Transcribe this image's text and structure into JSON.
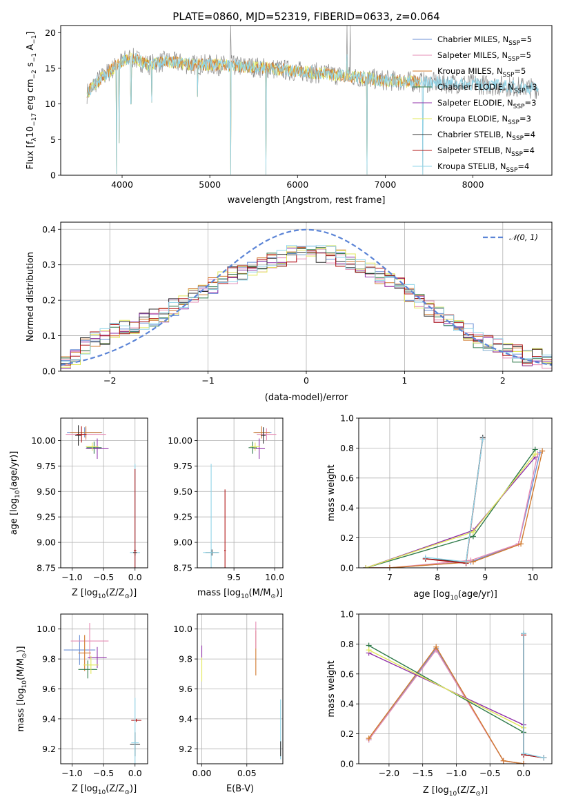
{
  "title": "PLATE=0860, MJD=52319, FIBERID=0633, z=0.064",
  "colors": {
    "chabrier_miles": "#6b8fd6",
    "salpeter_miles": "#e68cb5",
    "kroupa_miles": "#d17a2e",
    "chabrier_elodie": "#2f7a4a",
    "salpeter_elodie": "#8f2fa8",
    "kroupa_elodie": "#e2e85a",
    "chabrier_stelib": "#333333",
    "salpeter_stelib": "#b01515",
    "kroupa_stelib": "#8fd4e8",
    "gaussian": "#5b84d6",
    "grid": "#b0b0b0"
  },
  "chart_data": [
    {
      "type": "line",
      "id": "spectrum",
      "title": "PLATE=0860, MJD=52319, FIBERID=0633, z=0.064",
      "xlabel": "wavelength [Angstrom, rest frame]",
      "ylabel_parts": [
        "Flux [f",
        "λ",
        "10",
        "−17",
        " erg cm",
        "−2",
        " s",
        "−1",
        " A",
        "−1",
        "]"
      ],
      "xlim": [
        3300,
        8900
      ],
      "ylim": [
        0,
        21
      ],
      "xticks": [
        4000,
        5000,
        6000,
        7000,
        8000
      ],
      "yticks": [
        0,
        5,
        10,
        15,
        20
      ],
      "legend_position": "top-right",
      "legend": [
        {
          "name": "Chabrier MILES, N",
          "sub": "SSP",
          "suffix": "=5",
          "color": "chabrier_miles"
        },
        {
          "name": "Salpeter MILES, N",
          "sub": "SSP",
          "suffix": "=5",
          "color": "salpeter_miles"
        },
        {
          "name": "Kroupa MILES, N",
          "sub": "SSP",
          "suffix": "=5",
          "color": "kroupa_miles"
        },
        {
          "name": "Chabrier ELODIE, N",
          "sub": "SSP",
          "suffix": "=3",
          "color": "chabrier_elodie"
        },
        {
          "name": "Salpeter ELODIE, N",
          "sub": "SSP",
          "suffix": "=3",
          "color": "salpeter_elodie"
        },
        {
          "name": "Kroupa ELODIE, N",
          "sub": "SSP",
          "suffix": "=3",
          "color": "kroupa_elodie"
        },
        {
          "name": "Chabrier STELIB, N",
          "sub": "SSP",
          "suffix": "=4",
          "color": "chabrier_stelib"
        },
        {
          "name": "Salpeter STELIB, N",
          "sub": "SSP",
          "suffix": "=4",
          "color": "salpeter_stelib"
        },
        {
          "name": "Kroupa STELIB, N",
          "sub": "SSP",
          "suffix": "=4",
          "color": "kroupa_stelib"
        }
      ],
      "continuum": [
        [
          3600,
          11.5
        ],
        [
          3700,
          13
        ],
        [
          3800,
          14
        ],
        [
          3900,
          15
        ],
        [
          4000,
          16
        ],
        [
          4100,
          16.5
        ],
        [
          4300,
          15.5
        ],
        [
          4500,
          16
        ],
        [
          4800,
          15.5
        ],
        [
          5000,
          15.5
        ],
        [
          5500,
          15.2
        ],
        [
          6000,
          14.6
        ],
        [
          6500,
          14
        ],
        [
          7000,
          13.3
        ],
        [
          7500,
          13
        ],
        [
          8000,
          12.8
        ],
        [
          8500,
          12.4
        ],
        [
          8700,
          12.2
        ]
      ],
      "data_x_range": [
        3600,
        8750
      ],
      "model_x_range": [
        3600,
        7400
      ],
      "model_x_range_long": [
        3600,
        8750
      ],
      "dips": [
        [
          3934,
          0.2
        ],
        [
          3968,
          4.5
        ],
        [
          4101,
          10
        ],
        [
          4340,
          10.2
        ],
        [
          4861,
          11
        ],
        [
          5236,
          0.1
        ],
        [
          5640,
          0.1
        ],
        [
          6563,
          17
        ],
        [
          6790,
          0.1
        ],
        [
          7430,
          0.1
        ]
      ],
      "spikes": [
        [
          5236,
          21
        ],
        [
          6563,
          21
        ],
        [
          6600,
          21
        ]
      ]
    },
    {
      "type": "line",
      "id": "residuals",
      "xlabel": "(data-model)/error",
      "ylabel": "Normed distribution",
      "xlim": [
        -2.5,
        2.5
      ],
      "ylim": [
        0,
        0.42
      ],
      "xticks": [
        -2,
        -1,
        0,
        1,
        2
      ],
      "yticks": [
        0.0,
        0.1,
        0.2,
        0.3,
        0.4
      ],
      "xtick_labels": [
        "−2",
        "−1",
        "0",
        "1",
        "2"
      ],
      "ytick_labels": [
        "0.0",
        "0.1",
        "0.2",
        "0.3",
        "0.4"
      ],
      "legend_position": "top-right",
      "legend": [
        {
          "name": "𝒩(0, 1)",
          "color": "gaussian"
        }
      ],
      "bins": 50,
      "hist_base": [
        0.02,
        0.04,
        0.07,
        0.09,
        0.1,
        0.12,
        0.12,
        0.13,
        0.14,
        0.15,
        0.16,
        0.18,
        0.19,
        0.21,
        0.23,
        0.24,
        0.26,
        0.27,
        0.28,
        0.29,
        0.3,
        0.31,
        0.32,
        0.33,
        0.33,
        0.34,
        0.33,
        0.33,
        0.32,
        0.31,
        0.3,
        0.29,
        0.27,
        0.26,
        0.24,
        0.22,
        0.2,
        0.18,
        0.16,
        0.14,
        0.12,
        0.11,
        0.09,
        0.08,
        0.07,
        0.06,
        0.05,
        0.04,
        0.04,
        0.03
      ],
      "series_order": [
        "chabrier_miles",
        "salpeter_miles",
        "kroupa_miles",
        "chabrier_elodie",
        "salpeter_elodie",
        "kroupa_elodie",
        "chabrier_stelib",
        "salpeter_stelib",
        "kroupa_stelib"
      ]
    },
    {
      "type": "scatter",
      "id": "z_vs_age",
      "xlabel_parts": [
        "Z [log",
        "10",
        "(Z/Z",
        "⊙",
        ")]"
      ],
      "ylabel_parts": [
        "age  [log",
        "10",
        "(age/yr)]"
      ],
      "xlim": [
        -1.18,
        0.2
      ],
      "ylim": [
        8.75,
        10.22
      ],
      "xticks": [
        -1.0,
        -0.5,
        0.0
      ],
      "yticks": [
        8.75,
        9.0,
        9.25,
        9.5,
        9.75,
        10.0
      ],
      "xtick_labels": [
        "−1.0",
        "−0.5",
        "0.0"
      ],
      "ytick_labels": [
        "8.75",
        "9.00",
        "9.25",
        "9.50",
        "9.75",
        "10.00"
      ],
      "points": [
        {
          "s": "chabrier_miles",
          "x": -0.8,
          "y": 10.08,
          "ex": 0.28,
          "ey": 0.05
        },
        {
          "s": "salpeter_miles",
          "x": -0.78,
          "y": 10.06,
          "ex": 0.32,
          "ey": 0.06
        },
        {
          "s": "kroupa_miles",
          "x": -0.78,
          "y": 10.08,
          "ex": 0.25,
          "ey": 0.06
        },
        {
          "s": "chabrier_elodie",
          "x": -0.65,
          "y": 9.93,
          "ex": 0.12,
          "ey": 0.06
        },
        {
          "s": "salpeter_elodie",
          "x": -0.6,
          "y": 9.92,
          "ex": 0.18,
          "ey": 0.1
        },
        {
          "s": "kroupa_elodie",
          "x": -0.68,
          "y": 9.94,
          "ex": 0.1,
          "ey": 0.04
        },
        {
          "s": "chabrier_stelib",
          "x": -0.9,
          "y": 10.05,
          "ex": 0.05,
          "ey": 0.1
        },
        {
          "s": "salpeter_stelib",
          "x": -0.85,
          "y": 10.06,
          "ex": 0.08,
          "ey": 0.08
        },
        {
          "s": "kroupa_stelib",
          "x": 0.0,
          "y": 8.9,
          "ex": 0.08,
          "ey": 0.87
        },
        {
          "s": "chabrier_stelib",
          "x": 0.0,
          "y": 8.9,
          "ex": 0.03,
          "ey": 0.03
        },
        {
          "s": "salpeter_stelib",
          "x": 0.0,
          "y": 8.92,
          "ex": 0.02,
          "ey": 0.8
        }
      ]
    },
    {
      "type": "scatter",
      "id": "mass_vs_age",
      "xlabel_parts": [
        "mass [log",
        "10",
        "(M/M",
        "⊙",
        ")]"
      ],
      "xlim": [
        9.05,
        10.1
      ],
      "ylim": [
        8.75,
        10.22
      ],
      "xticks": [
        9.5,
        10.0
      ],
      "yticks": [
        8.75,
        9.0,
        9.25,
        9.5,
        9.75,
        10.0
      ],
      "xtick_labels": [
        "9.5",
        "10.0"
      ],
      "ytick_labels": [
        "8.75",
        "9.00",
        "9.25",
        "9.50",
        "9.75",
        "10.00"
      ],
      "points": [
        {
          "s": "chabrier_miles",
          "x": 9.86,
          "y": 10.08,
          "ex": 0.1,
          "ey": 0.05
        },
        {
          "s": "salpeter_miles",
          "x": 9.9,
          "y": 10.06,
          "ex": 0.12,
          "ey": 0.06
        },
        {
          "s": "kroupa_miles",
          "x": 9.84,
          "y": 10.08,
          "ex": 0.1,
          "ey": 0.06
        },
        {
          "s": "chabrier_elodie",
          "x": 9.73,
          "y": 9.93,
          "ex": 0.05,
          "ey": 0.06
        },
        {
          "s": "salpeter_elodie",
          "x": 9.81,
          "y": 9.92,
          "ex": 0.07,
          "ey": 0.1
        },
        {
          "s": "kroupa_elodie",
          "x": 9.76,
          "y": 9.94,
          "ex": 0.06,
          "ey": 0.04
        },
        {
          "s": "chabrier_stelib",
          "x": 9.23,
          "y": 8.9,
          "ex": 0.08,
          "ey": 0.03
        },
        {
          "s": "salpeter_stelib",
          "x": 9.39,
          "y": 8.92,
          "ex": 0.01,
          "ey": 0.6
        },
        {
          "s": "kroupa_stelib",
          "x": 9.22,
          "y": 8.9,
          "ex": 0.1,
          "ey": 0.87
        },
        {
          "s": "chabrier_stelib",
          "x": 9.86,
          "y": 10.05,
          "ex": 0.03,
          "ey": 0.08
        }
      ]
    },
    {
      "type": "line",
      "id": "age_vs_weight",
      "xlabel_parts": [
        "age  [log",
        "10",
        "(age/yr)]"
      ],
      "ylabel": "mass weight",
      "xlim": [
        6.35,
        10.4
      ],
      "ylim": [
        0,
        1.0
      ],
      "xticks": [
        7,
        8,
        9,
        10
      ],
      "yticks": [
        0.0,
        0.2,
        0.4,
        0.6,
        0.8,
        1.0
      ],
      "xtick_labels": [
        "7",
        "8",
        "9",
        "10"
      ],
      "ytick_labels": [
        "0.0",
        "0.2",
        "0.4",
        "0.6",
        "0.8",
        "1.0"
      ],
      "series": [
        {
          "s": "chabrier_miles",
          "x": [
            6.5,
            7.0,
            8.7,
            9.7,
            10.15
          ],
          "y": [
            0.0,
            0.0,
            0.04,
            0.16,
            0.77
          ]
        },
        {
          "s": "salpeter_miles",
          "x": [
            6.5,
            7.0,
            8.7,
            9.7,
            10.1
          ],
          "y": [
            0.0,
            0.0,
            0.05,
            0.16,
            0.76
          ]
        },
        {
          "s": "kroupa_miles",
          "x": [
            6.5,
            7.0,
            8.75,
            9.75,
            10.2
          ],
          "y": [
            0.0,
            0.0,
            0.04,
            0.16,
            0.78
          ]
        },
        {
          "s": "chabrier_elodie",
          "x": [
            6.5,
            8.75,
            10.05
          ],
          "y": [
            0.0,
            0.21,
            0.79
          ]
        },
        {
          "s": "salpeter_elodie",
          "x": [
            6.5,
            8.75,
            10.05
          ],
          "y": [
            0.0,
            0.25,
            0.74
          ]
        },
        {
          "s": "kroupa_elodie",
          "x": [
            6.5,
            8.75,
            10.05
          ],
          "y": [
            0.0,
            0.24,
            0.76
          ]
        },
        {
          "s": "chabrier_stelib",
          "x": [
            7.75,
            8.6,
            8.95
          ],
          "y": [
            0.06,
            0.04,
            0.87
          ]
        },
        {
          "s": "salpeter_stelib",
          "x": [
            7.75,
            8.6,
            8.95
          ],
          "y": [
            0.06,
            0.03,
            0.86
          ]
        },
        {
          "s": "kroupa_stelib",
          "x": [
            7.75,
            8.6,
            8.95
          ],
          "y": [
            0.07,
            0.04,
            0.86
          ]
        }
      ]
    },
    {
      "type": "scatter",
      "id": "z_vs_mass",
      "xlabel_parts": [
        "Z [log",
        "10",
        "(Z/Z",
        "⊙",
        ")]"
      ],
      "ylabel_parts": [
        "mass [log",
        "10",
        "(M/M",
        "⊙",
        ")]"
      ],
      "xlim": [
        -1.18,
        0.2
      ],
      "ylim": [
        9.1,
        10.1
      ],
      "xticks": [
        -1.0,
        -0.5,
        0.0
      ],
      "yticks": [
        9.2,
        9.4,
        9.6,
        9.8,
        10.0
      ],
      "xtick_labels": [
        "−1.0",
        "−0.5",
        "0.0"
      ],
      "ytick_labels": [
        "9.2",
        "9.4",
        "9.6",
        "9.8",
        "10.0"
      ],
      "points": [
        {
          "s": "chabrier_miles",
          "x": -0.88,
          "y": 9.86,
          "ex": 0.25,
          "ey": 0.1
        },
        {
          "s": "salpeter_miles",
          "x": -0.72,
          "y": 9.92,
          "ex": 0.3,
          "ey": 0.12
        },
        {
          "s": "kroupa_miles",
          "x": -0.8,
          "y": 9.84,
          "ex": 0.1,
          "ey": 0.12
        },
        {
          "s": "chabrier_elodie",
          "x": -0.75,
          "y": 9.73,
          "ex": 0.15,
          "ey": 0.06
        },
        {
          "s": "salpeter_elodie",
          "x": -0.6,
          "y": 9.81,
          "ex": 0.15,
          "ey": 0.07
        },
        {
          "s": "kroupa_elodie",
          "x": -0.7,
          "y": 9.76,
          "ex": 0.12,
          "ey": 0.06
        },
        {
          "s": "chabrier_stelib",
          "x": 0.0,
          "y": 9.23,
          "ex": 0.08,
          "ey": 0.08
        },
        {
          "s": "salpeter_stelib",
          "x": 0.02,
          "y": 9.39,
          "ex": 0.08,
          "ey": 0.01
        },
        {
          "s": "kroupa_stelib",
          "x": 0.0,
          "y": 9.24,
          "ex": 0.06,
          "ey": 0.3
        }
      ]
    },
    {
      "type": "scatter",
      "id": "ebv_vs_mass",
      "xlabel": "E(B-V)",
      "xlim": [
        -0.005,
        0.09
      ],
      "ylim": [
        9.1,
        10.1
      ],
      "xticks": [
        0.0,
        0.05
      ],
      "yticks": [
        9.2,
        9.4,
        9.6,
        9.8,
        10.0
      ],
      "xtick_labels": [
        "0.00",
        "0.05"
      ],
      "ytick_labels": [
        "9.2",
        "9.4",
        "9.6",
        "9.8",
        "10.0"
      ],
      "points": [
        {
          "s": "kroupa_elodie",
          "x": 0.0,
          "y": 9.73,
          "ex": 0.0,
          "ey": 0.08
        },
        {
          "s": "salpeter_elodie",
          "x": 0.0,
          "y": 9.85,
          "ex": 0.0,
          "ey": 0.04
        },
        {
          "s": "kroupa_miles",
          "x": 0.06,
          "y": 9.84,
          "ex": 0.0,
          "ey": 0.15
        },
        {
          "s": "salpeter_miles",
          "x": 0.06,
          "y": 9.96,
          "ex": 0.0,
          "ey": 0.09
        },
        {
          "s": "kroupa_stelib",
          "x": 0.0875,
          "y": 9.33,
          "ex": 0.0,
          "ey": 0.2
        },
        {
          "s": "chabrier_stelib",
          "x": 0.0875,
          "y": 9.2,
          "ex": 0.0,
          "ey": 0.05
        }
      ]
    },
    {
      "type": "line",
      "id": "z_vs_weight",
      "xlabel_parts": [
        "Z [log",
        "10",
        "(Z/Z",
        "⊙",
        ")]"
      ],
      "ylabel": "mass weight",
      "xlim": [
        -2.45,
        0.42
      ],
      "ylim": [
        0,
        1.0
      ],
      "xticks": [
        -2.0,
        -1.5,
        -1.0,
        -0.5,
        0.0
      ],
      "yticks": [
        0.0,
        0.2,
        0.4,
        0.6,
        0.8,
        1.0
      ],
      "xtick_labels": [
        "−2.0",
        "−1.5",
        "−1.0",
        "−0.5",
        "0.0"
      ],
      "ytick_labels": [
        "0.0",
        "0.2",
        "0.4",
        "0.6",
        "0.8",
        "1.0"
      ],
      "series": [
        {
          "s": "chabrier_miles",
          "x": [
            -2.3,
            -1.3,
            -0.3,
            0.0
          ],
          "y": [
            0.16,
            0.77,
            0.02,
            0.0
          ]
        },
        {
          "s": "salpeter_miles",
          "x": [
            -2.3,
            -1.3,
            -0.3,
            0.0
          ],
          "y": [
            0.16,
            0.76,
            0.02,
            0.0
          ]
        },
        {
          "s": "kroupa_miles",
          "x": [
            -2.3,
            -1.3,
            -0.3,
            0.0
          ],
          "y": [
            0.17,
            0.78,
            0.02,
            0.0
          ]
        },
        {
          "s": "chabrier_elodie",
          "x": [
            -2.3,
            0.0
          ],
          "y": [
            0.79,
            0.21
          ]
        },
        {
          "s": "salpeter_elodie",
          "x": [
            -2.3,
            0.0
          ],
          "y": [
            0.74,
            0.26
          ]
        },
        {
          "s": "kroupa_elodie",
          "x": [
            -2.3,
            0.0
          ],
          "y": [
            0.76,
            0.24
          ]
        },
        {
          "s": "chabrier_stelib",
          "x": [
            0.0,
            0.0,
            0.3
          ],
          "y": [
            0.87,
            0.06,
            0.04
          ]
        },
        {
          "s": "salpeter_stelib",
          "x": [
            0.0,
            0.0,
            0.3
          ],
          "y": [
            0.86,
            0.06,
            0.04
          ]
        },
        {
          "s": "kroupa_stelib",
          "x": [
            0.0,
            0.0,
            0.3
          ],
          "y": [
            0.87,
            0.07,
            0.04
          ]
        }
      ]
    }
  ]
}
